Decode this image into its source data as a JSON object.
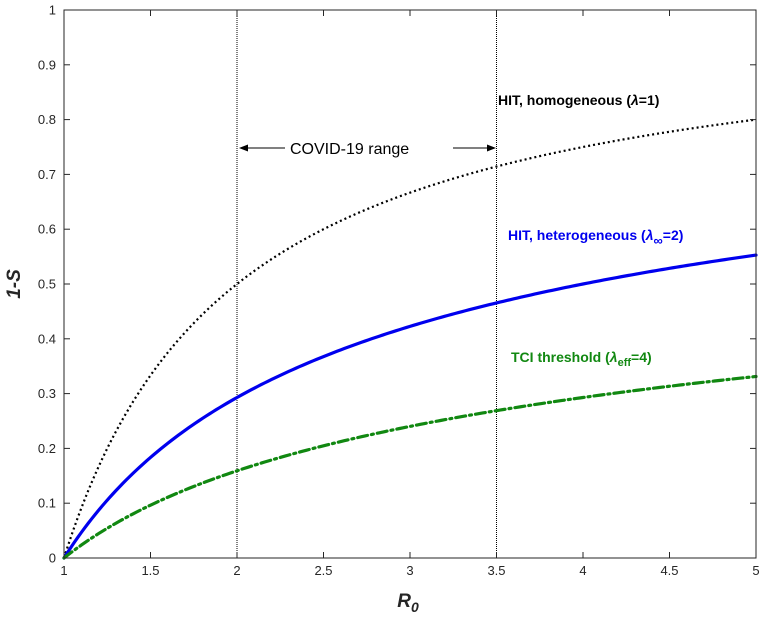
{
  "chart_data": {
    "type": "line",
    "title": "",
    "xlabel": "R",
    "xlabel_sub": "0",
    "ylabel": "1-S",
    "xlim": [
      1,
      5
    ],
    "ylim": [
      0,
      1
    ],
    "xticks": [
      "1",
      "1.5",
      "2",
      "2.5",
      "3",
      "3.5",
      "4",
      "4.5",
      "5"
    ],
    "yticks": [
      "0",
      "0.1",
      "0.2",
      "0.3",
      "0.4",
      "0.5",
      "0.6",
      "0.7",
      "0.8",
      "0.9",
      "1"
    ],
    "grid": false,
    "x": [
      1,
      1.25,
      1.5,
      1.75,
      2,
      2.25,
      2.5,
      2.75,
      3,
      3.25,
      3.5,
      3.75,
      4,
      4.25,
      4.5,
      4.75,
      5
    ],
    "series": [
      {
        "label_main": "HIT, homogeneous (",
        "label_sym": "λ",
        "label_sub": "",
        "label_end": "=1)",
        "color": "#000000",
        "style": "dotted",
        "values": [
          0,
          0.2,
          0.333,
          0.429,
          0.5,
          0.556,
          0.6,
          0.636,
          0.667,
          0.692,
          0.714,
          0.733,
          0.75,
          0.765,
          0.778,
          0.789,
          0.8
        ]
      },
      {
        "label_main": "HIT, heterogeneous (",
        "label_sym": "λ",
        "label_sub": "∞",
        "label_end": "=2)",
        "color": "#0000ee",
        "style": "solid",
        "values": [
          0,
          0.106,
          0.184,
          0.245,
          0.293,
          0.333,
          0.368,
          0.397,
          0.423,
          0.445,
          0.465,
          0.484,
          0.5,
          0.515,
          0.529,
          0.541,
          0.553
        ]
      },
      {
        "label_main": "TCI threshold (",
        "label_sym": "λ",
        "label_sub": "eff",
        "label_end": "=4)",
        "color": "#118811",
        "style": "dashdot",
        "values": [
          0,
          0.054,
          0.096,
          0.131,
          0.159,
          0.184,
          0.205,
          0.223,
          0.24,
          0.255,
          0.268,
          0.281,
          0.293,
          0.303,
          0.313,
          0.322,
          0.331
        ]
      }
    ],
    "vlines": [
      2,
      3.5
    ],
    "range_label": "COVID-19 range"
  }
}
